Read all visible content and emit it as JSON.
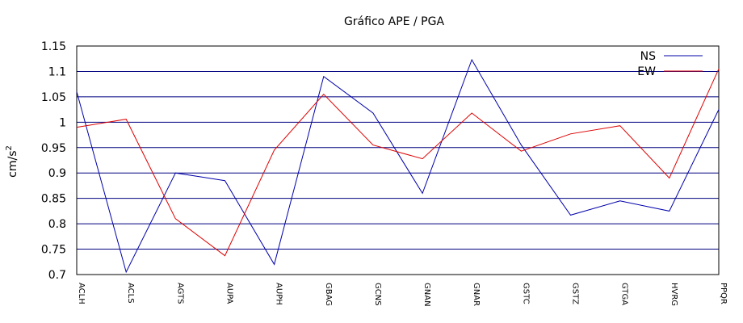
{
  "chart_data": {
    "type": "line",
    "title": "Gráfico  APE / PGA",
    "xlabel": "",
    "ylabel": "cm/s",
    "ylabel_superscript": "2",
    "ylim": [
      0.7,
      1.15
    ],
    "yticks": [
      "0.7",
      "0.75",
      "0.8",
      "0.85",
      "0.9",
      "0.95",
      "1",
      "1.05",
      "1.1",
      "1.15"
    ],
    "grid": true,
    "legend_position": "top-right",
    "categories": [
      "ACLH",
      "ACLS",
      "AGTS",
      "AUPA",
      "AUPH",
      "GBAG",
      "GCNS",
      "GNAN",
      "GNAR",
      "GSTC",
      "GSTZ",
      "GTGA",
      "HVRG",
      "PPQR"
    ],
    "series": [
      {
        "name": "NS",
        "color": "#0000aa",
        "values": [
          1.06,
          0.705,
          0.9,
          0.885,
          0.72,
          1.09,
          1.018,
          0.86,
          1.123,
          0.955,
          0.817,
          0.845,
          0.825,
          1.025
        ]
      },
      {
        "name": "EW",
        "color": "#dd0000",
        "values": [
          0.99,
          1.006,
          0.81,
          0.737,
          0.945,
          1.055,
          0.955,
          0.928,
          1.018,
          0.943,
          0.977,
          0.993,
          0.89,
          1.105
        ]
      }
    ]
  }
}
